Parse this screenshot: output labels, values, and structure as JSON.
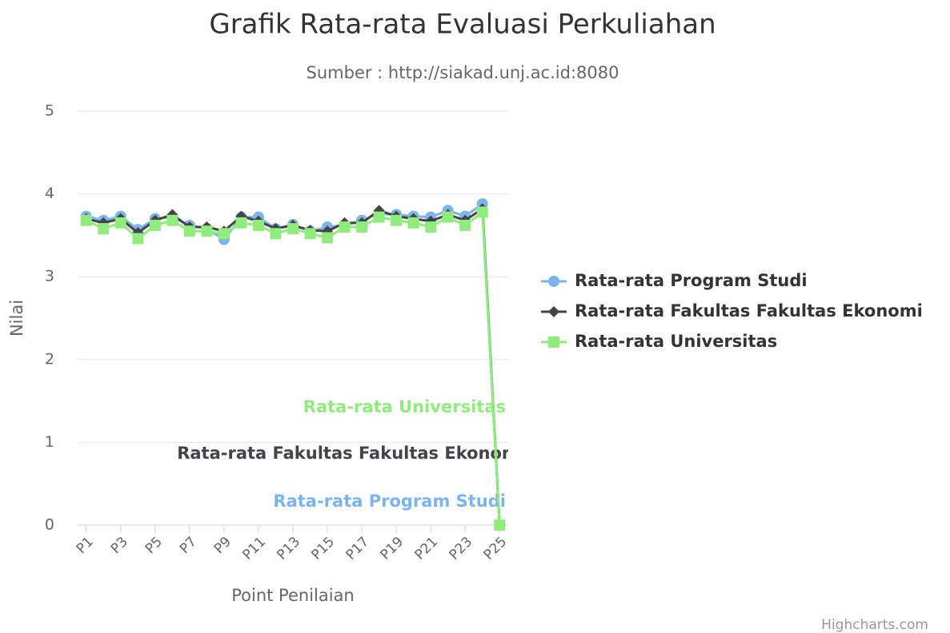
{
  "chart_data": {
    "type": "line",
    "title": "Grafik Rata-rata Evaluasi Perkuliahan",
    "subtitle": "Sumber : http://siakad.unj.ac.id:8080",
    "y_axis_label": "Nilai",
    "x_axis_label": "Point Penilaian",
    "credits": "Highcharts.com",
    "legend": "right",
    "grid": true,
    "categories": [
      "P1",
      null,
      "P3",
      null,
      "P5",
      null,
      "P7",
      null,
      "P9",
      null,
      "P11",
      null,
      "P13",
      null,
      "P15",
      null,
      "P17",
      null,
      "P19",
      null,
      "P21",
      null,
      "P23",
      null,
      "P25"
    ],
    "ylim": [
      0,
      5
    ],
    "yticks": [
      0,
      1,
      2,
      3,
      4,
      5
    ],
    "series": [
      {
        "name": "Rata-rata Program Studi",
        "color": "#7cb5ec",
        "marker": "circle",
        "values": [
          3.73,
          3.68,
          3.73,
          3.57,
          3.7,
          3.72,
          3.62,
          3.58,
          3.45,
          3.72,
          3.72,
          3.58,
          3.63,
          3.55,
          3.6,
          3.62,
          3.68,
          3.76,
          3.75,
          3.73,
          3.72,
          3.8,
          3.73,
          3.88,
          0
        ]
      },
      {
        "name": "Rata-rata Fakultas Fakultas Ekonomi",
        "color": "#434348",
        "marker": "diamond",
        "values": [
          3.7,
          3.65,
          3.7,
          3.53,
          3.68,
          3.75,
          3.6,
          3.6,
          3.55,
          3.73,
          3.67,
          3.58,
          3.62,
          3.56,
          3.55,
          3.65,
          3.65,
          3.8,
          3.73,
          3.7,
          3.67,
          3.75,
          3.68,
          3.82,
          0
        ]
      },
      {
        "name": "Rata-rata Universitas",
        "color": "#90ed7d",
        "marker": "square",
        "values": [
          3.68,
          3.58,
          3.65,
          3.46,
          3.62,
          3.68,
          3.55,
          3.55,
          3.52,
          3.65,
          3.62,
          3.52,
          3.58,
          3.52,
          3.47,
          3.6,
          3.6,
          3.72,
          3.68,
          3.65,
          3.6,
          3.72,
          3.62,
          3.78,
          0
        ]
      }
    ]
  }
}
